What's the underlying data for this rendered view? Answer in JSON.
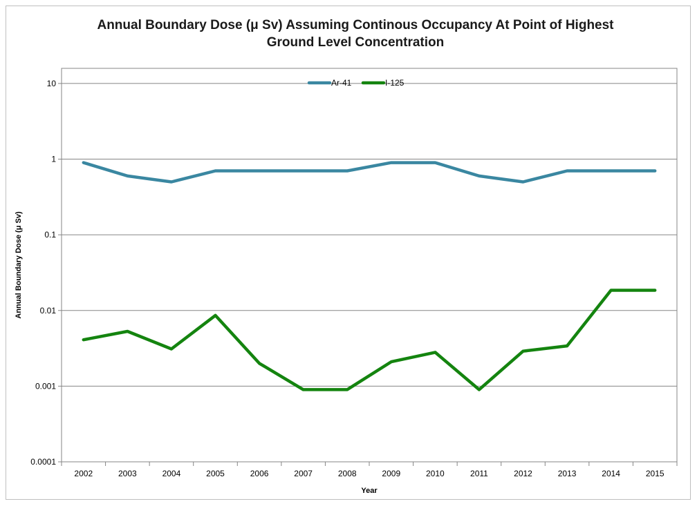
{
  "chart_data": {
    "type": "line",
    "title_lines": [
      "Annual Boundary Dose (μ Sv) Assuming Continous Occupancy At Point of Highest",
      "Ground Level Concentration"
    ],
    "xlabel": "Year",
    "ylabel": "Annual Boundary Dose (μ Sv)",
    "y_scale": "log",
    "ylim": [
      0.0001,
      10
    ],
    "y_ticks": [
      {
        "value": 0.0001,
        "label": "0.0001"
      },
      {
        "value": 0.001,
        "label": "0.001"
      },
      {
        "value": 0.01,
        "label": "0.01"
      },
      {
        "value": 0.1,
        "label": "0.1"
      },
      {
        "value": 1,
        "label": "1"
      },
      {
        "value": 10,
        "label": "10"
      }
    ],
    "categories": [
      "2002",
      "2003",
      "2004",
      "2005",
      "2006",
      "2007",
      "2008",
      "2009",
      "2010",
      "2011",
      "2012",
      "2013",
      "2014",
      "2015"
    ],
    "grid": true,
    "legend_position": "top",
    "series": [
      {
        "name": "Ar-41",
        "color": "#3a87a1",
        "values": [
          0.9,
          0.6,
          0.5,
          0.7,
          0.7,
          0.7,
          0.7,
          0.9,
          0.9,
          0.6,
          0.5,
          0.7,
          0.7,
          0.7
        ]
      },
      {
        "name": "I-125",
        "color": "#14840f",
        "values": [
          0.0041,
          0.0053,
          0.0031,
          0.0086,
          0.002,
          0.0009,
          0.0009,
          0.0021,
          0.0028,
          0.0009,
          0.0029,
          0.0034,
          0.0185,
          0.0185
        ]
      }
    ]
  }
}
